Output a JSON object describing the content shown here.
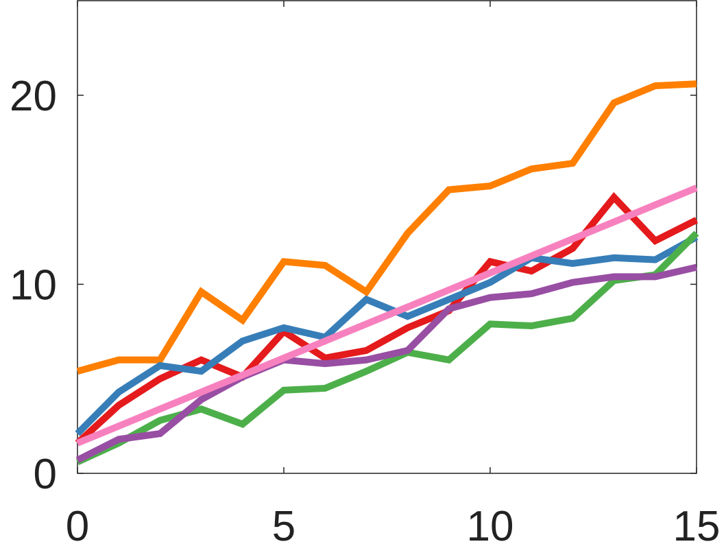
{
  "chart_data": {
    "type": "line",
    "x": [
      0,
      1,
      2,
      3,
      4,
      5,
      6,
      7,
      8,
      9,
      10,
      11,
      12,
      13,
      14,
      15
    ],
    "series": [
      {
        "color": "#ff7f00",
        "values": [
          5.4,
          6.0,
          6.0,
          9.6,
          8.1,
          11.2,
          11.0,
          9.6,
          12.7,
          15.0,
          15.2,
          16.1,
          16.4,
          19.6,
          20.5,
          20.6
        ]
      },
      {
        "color": "#e41a1c",
        "values": [
          1.6,
          3.6,
          5.0,
          6.0,
          5.1,
          7.5,
          6.1,
          6.5,
          7.7,
          8.6,
          11.2,
          10.7,
          11.9,
          14.6,
          12.3,
          13.4
        ]
      },
      {
        "color": "#377eb8",
        "values": [
          2.1,
          4.3,
          5.7,
          5.4,
          7.0,
          7.7,
          7.2,
          9.2,
          8.3,
          9.2,
          10.1,
          11.4,
          11.1,
          11.4,
          11.3,
          12.5
        ]
      },
      {
        "color": "#4daf4a",
        "values": [
          0.6,
          1.6,
          2.8,
          3.4,
          2.6,
          4.4,
          4.5,
          5.4,
          6.4,
          6.0,
          7.9,
          7.8,
          8.2,
          10.2,
          10.5,
          12.7
        ]
      },
      {
        "color": "#984ea3",
        "values": [
          0.7,
          1.8,
          2.1,
          3.9,
          5.1,
          6.0,
          5.8,
          6.0,
          6.5,
          8.7,
          9.3,
          9.5,
          10.1,
          10.4,
          10.4,
          10.9
        ]
      },
      {
        "color": "#f781bf",
        "values": [
          1.6,
          2.5,
          3.4,
          4.3,
          5.2,
          6.1,
          7.0,
          7.9,
          8.8,
          9.7,
          10.6,
          11.5,
          12.4,
          13.3,
          14.2,
          15.1
        ]
      }
    ],
    "xlim": [
      0,
      15
    ],
    "xticks": [
      0,
      5,
      10,
      15
    ],
    "ylim": [
      0,
      25
    ],
    "yticks": [
      0,
      10,
      20
    ]
  }
}
